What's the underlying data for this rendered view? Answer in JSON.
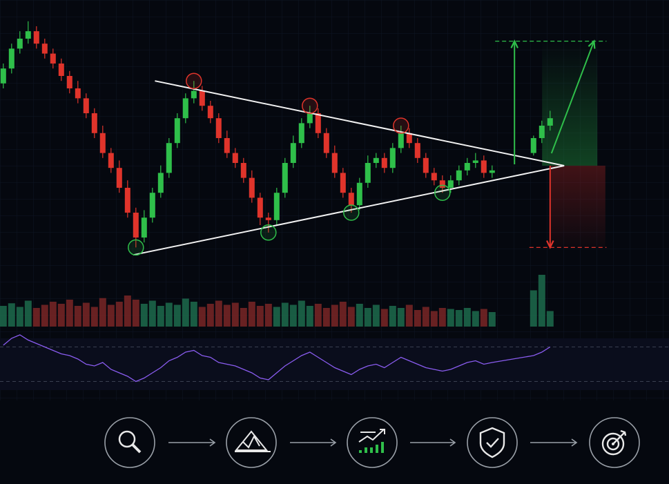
{
  "chart_data": {
    "type": "candlestick",
    "x": [
      0,
      1,
      2,
      3,
      4,
      5,
      6,
      7,
      8,
      9,
      10,
      11,
      12,
      13,
      14,
      15,
      16,
      17,
      18,
      19,
      20,
      21,
      22,
      23,
      24,
      25,
      26,
      27,
      28,
      29,
      30,
      31,
      32,
      33,
      34,
      35,
      36,
      37,
      38,
      39,
      40,
      41,
      42,
      43,
      44,
      45,
      46,
      47,
      48,
      49,
      50,
      51,
      52,
      53,
      54,
      55,
      56,
      57,
      58,
      59,
      64,
      65,
      66
    ],
    "open": [
      72,
      78,
      86,
      90,
      93,
      88,
      84,
      80,
      75,
      70,
      66,
      60,
      52,
      44,
      38,
      30,
      20,
      10,
      18,
      28,
      36,
      48,
      58,
      66,
      69,
      63,
      58,
      50,
      44,
      40,
      34,
      26,
      18,
      17,
      28,
      40,
      48,
      56,
      60,
      52,
      44,
      36,
      28,
      23,
      32,
      40,
      42,
      38,
      46,
      52,
      48,
      42,
      36,
      33,
      30,
      33,
      37,
      40,
      41,
      36,
      44,
      50,
      55
    ],
    "high": [
      80,
      88,
      93,
      97,
      95,
      90,
      86,
      82,
      77,
      73,
      68,
      62,
      55,
      46,
      41,
      33,
      22,
      21,
      30,
      39,
      50,
      60,
      68,
      73,
      71,
      65,
      60,
      53,
      46,
      42,
      37,
      28,
      20,
      30,
      42,
      51,
      58,
      63,
      62,
      54,
      47,
      38,
      30,
      34,
      43,
      44,
      44,
      48,
      55,
      54,
      50,
      44,
      38,
      35,
      35,
      39,
      42,
      44,
      43,
      39,
      51,
      57,
      61
    ],
    "low": [
      70,
      76,
      84,
      88,
      86,
      82,
      78,
      73,
      68,
      64,
      58,
      50,
      42,
      36,
      28,
      18,
      6,
      8,
      16,
      26,
      34,
      46,
      56,
      64,
      61,
      56,
      48,
      42,
      38,
      32,
      24,
      15,
      12,
      15,
      26,
      38,
      46,
      54,
      50,
      42,
      34,
      26,
      20,
      21,
      30,
      38,
      36,
      36,
      44,
      46,
      40,
      34,
      31,
      28,
      28,
      31,
      35,
      38,
      34,
      34,
      43,
      48,
      53
    ],
    "close": [
      78,
      86,
      90,
      93,
      88,
      84,
      80,
      75,
      70,
      66,
      60,
      52,
      44,
      38,
      30,
      20,
      10,
      18,
      28,
      36,
      48,
      58,
      66,
      69,
      63,
      58,
      50,
      44,
      40,
      34,
      26,
      18,
      17,
      28,
      40,
      48,
      56,
      60,
      52,
      44,
      36,
      28,
      23,
      32,
      40,
      42,
      38,
      46,
      52,
      48,
      42,
      36,
      33,
      30,
      33,
      37,
      40,
      41,
      36,
      37,
      50,
      55,
      58
    ],
    "colors": {
      "up": "#2fbf4a",
      "down": "#e0342b"
    },
    "xlim": [
      -0.4,
      80.35
    ],
    "ylim": [
      0,
      100
    ],
    "volume": {
      "values": [
        40,
        45,
        38,
        50,
        36,
        42,
        48,
        44,
        52,
        40,
        46,
        38,
        55,
        42,
        48,
        60,
        52,
        44,
        50,
        40,
        46,
        42,
        54,
        48,
        38,
        44,
        50,
        42,
        46,
        36,
        48,
        40,
        44,
        38,
        46,
        42,
        50,
        40,
        44,
        36,
        42,
        48,
        38,
        44,
        36,
        42,
        34,
        40,
        36,
        42,
        32,
        38,
        30,
        36,
        34,
        32,
        36,
        30,
        34,
        28,
        70,
        100,
        30
      ],
      "ylim": [
        0,
        100
      ]
    },
    "rsi": {
      "values": [
        72,
        80,
        84,
        78,
        74,
        70,
        66,
        62,
        60,
        56,
        50,
        48,
        52,
        44,
        40,
        36,
        30,
        34,
        40,
        46,
        54,
        58,
        64,
        66,
        60,
        58,
        52,
        50,
        48,
        44,
        40,
        34,
        32,
        40,
        48,
        54,
        60,
        64,
        58,
        52,
        46,
        42,
        38,
        44,
        48,
        50,
        46,
        52,
        58,
        54,
        50,
        46,
        44,
        42,
        44,
        48,
        52,
        54,
        50,
        52,
        60,
        64,
        70
      ],
      "ylim": [
        20,
        80
      ],
      "levels": [
        70,
        30
      ],
      "color": "#8a5cf0"
    },
    "trendlines": [
      [
        [
          18.3,
          73
        ],
        [
          67.7,
          38.9
        ]
      ],
      [
        [
          15.7,
          3
        ],
        [
          67.7,
          38.9
        ]
      ]
    ],
    "pivot_highs": [
      23,
      37,
      48
    ],
    "pivot_lows": [
      16,
      32,
      42,
      53
    ],
    "targets": {
      "up": 89,
      "down": 6,
      "breakout_x": 61.7,
      "projection_x": 71.3,
      "apex_x": 66
    }
  }
}
